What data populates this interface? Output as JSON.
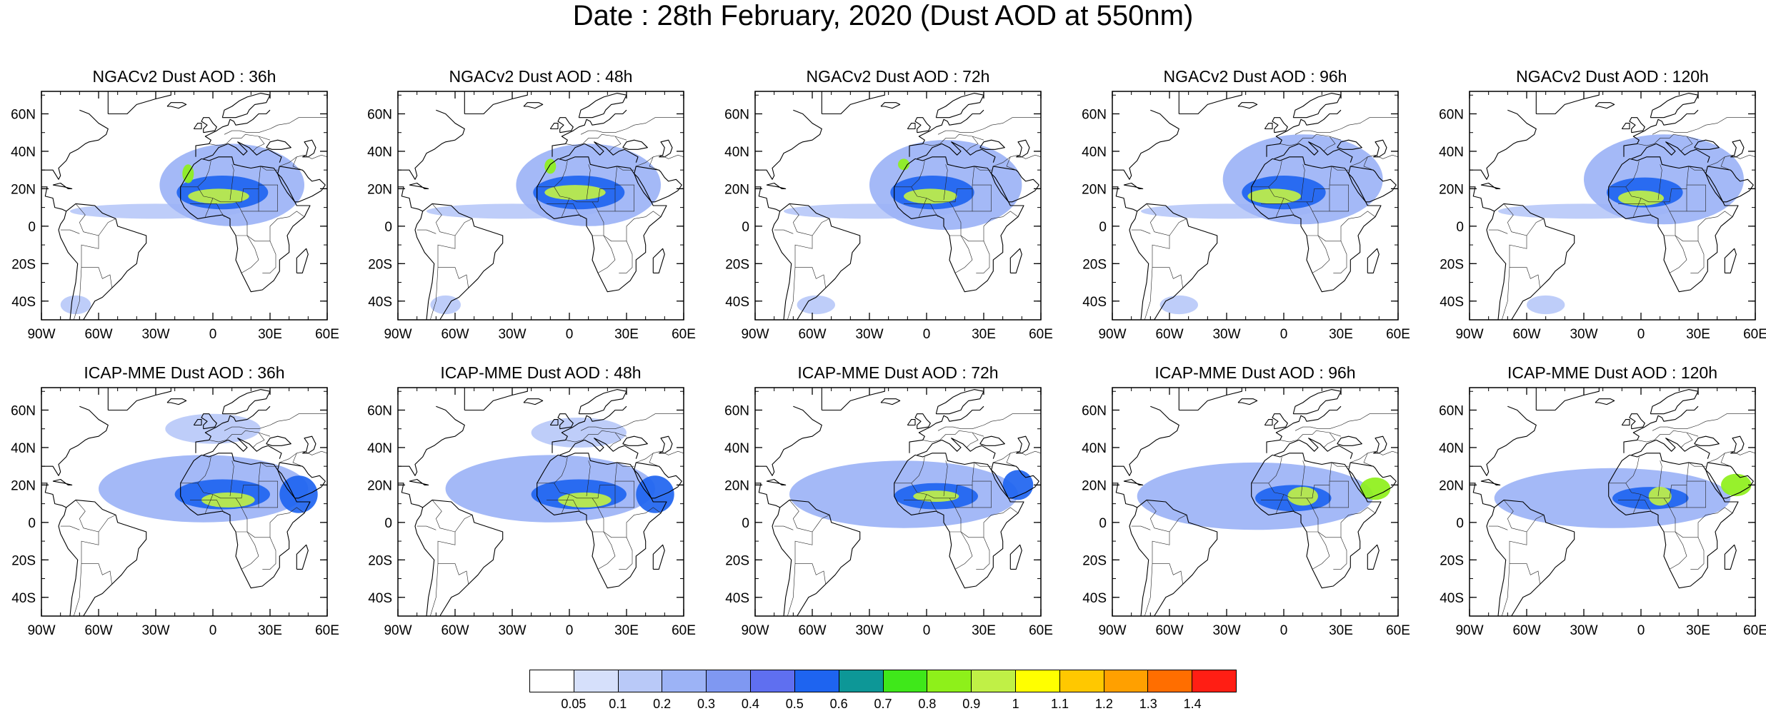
{
  "figure": {
    "title": "Date : 28th February, 2020 (Dust AOD at 550nm)"
  },
  "panels": [
    {
      "title": "NGACv2 Dust AOD : 36h"
    },
    {
      "title": "NGACv2 Dust AOD : 48h"
    },
    {
      "title": "NGACv2 Dust AOD : 72h"
    },
    {
      "title": "NGACv2 Dust AOD : 96h"
    },
    {
      "title": "NGACv2 Dust AOD : 120h"
    },
    {
      "title": "ICAP-MME Dust AOD : 36h"
    },
    {
      "title": "ICAP-MME Dust AOD : 48h"
    },
    {
      "title": "ICAP-MME Dust AOD : 72h"
    },
    {
      "title": "ICAP-MME Dust AOD : 96h"
    },
    {
      "title": "ICAP-MME Dust AOD : 120h"
    }
  ],
  "map_extent": {
    "lon_min": -90,
    "lon_max": 60,
    "lat_min": -50,
    "lat_max": 72
  },
  "axes": {
    "lon_ticks": [
      {
        "value": -90,
        "label": "90W"
      },
      {
        "value": -60,
        "label": "60W"
      },
      {
        "value": -30,
        "label": "30W"
      },
      {
        "value": 0,
        "label": "0"
      },
      {
        "value": 30,
        "label": "30E"
      },
      {
        "value": 60,
        "label": "60E"
      }
    ],
    "lat_ticks": [
      {
        "value": 60,
        "label": "60N"
      },
      {
        "value": 40,
        "label": "40N"
      },
      {
        "value": 20,
        "label": "20N"
      },
      {
        "value": 0,
        "label": "0"
      },
      {
        "value": -20,
        "label": "20S"
      },
      {
        "value": -40,
        "label": "40S"
      }
    ]
  },
  "colorbar": {
    "colors": [
      "#ffffff",
      "#d6e0fb",
      "#b9c9f8",
      "#9cb3f6",
      "#7f98f2",
      "#5f6ff0",
      "#1e64f0",
      "#0d9797",
      "#3fe81a",
      "#8ef01a",
      "#c0f046",
      "#ffff00",
      "#ffc800",
      "#ffa000",
      "#ff6e00",
      "#ff1e14"
    ],
    "labels": [
      "0.05",
      "0.1",
      "0.2",
      "0.3",
      "0.4",
      "0.5",
      "0.6",
      "0.7",
      "0.8",
      "0.9",
      "1",
      "1.1",
      "1.2",
      "1.3",
      "1.4"
    ]
  },
  "plumes": [
    {
      "blobs": [
        {
          "lon": 10,
          "lat": 22,
          "rx": 38,
          "ry": 22,
          "aod": 0.2
        },
        {
          "lon": 5,
          "lat": 18,
          "rx": 24,
          "ry": 9,
          "aod": 0.5
        },
        {
          "lon": 3,
          "lat": 16,
          "rx": 16,
          "ry": 4,
          "aod": 0.9
        },
        {
          "lon": -13,
          "lat": 28,
          "rx": 3,
          "ry": 5,
          "aod": 0.8
        },
        {
          "lon": -30,
          "lat": 8,
          "rx": 45,
          "ry": 4,
          "aod": 0.1
        },
        {
          "lon": -72,
          "lat": -42,
          "rx": 8,
          "ry": 5,
          "aod": 0.1
        }
      ]
    },
    {
      "blobs": [
        {
          "lon": 10,
          "lat": 22,
          "rx": 38,
          "ry": 22,
          "aod": 0.2
        },
        {
          "lon": 5,
          "lat": 18,
          "rx": 24,
          "ry": 9,
          "aod": 0.5
        },
        {
          "lon": 3,
          "lat": 18,
          "rx": 16,
          "ry": 4,
          "aod": 0.9
        },
        {
          "lon": -10,
          "lat": 32,
          "rx": 3,
          "ry": 4,
          "aod": 0.8
        },
        {
          "lon": -30,
          "lat": 8,
          "rx": 45,
          "ry": 4,
          "aod": 0.1
        },
        {
          "lon": -65,
          "lat": -42,
          "rx": 8,
          "ry": 5,
          "aod": 0.1
        }
      ]
    },
    {
      "blobs": [
        {
          "lon": 10,
          "lat": 22,
          "rx": 40,
          "ry": 24,
          "aod": 0.2
        },
        {
          "lon": 3,
          "lat": 18,
          "rx": 22,
          "ry": 9,
          "aod": 0.5
        },
        {
          "lon": 2,
          "lat": 16,
          "rx": 14,
          "ry": 4,
          "aod": 0.9
        },
        {
          "lon": -12,
          "lat": 33,
          "rx": 3,
          "ry": 3,
          "aod": 0.8
        },
        {
          "lon": -30,
          "lat": 8,
          "rx": 45,
          "ry": 4,
          "aod": 0.1
        },
        {
          "lon": -58,
          "lat": -42,
          "rx": 10,
          "ry": 5,
          "aod": 0.1
        }
      ]
    },
    {
      "blobs": [
        {
          "lon": 10,
          "lat": 25,
          "rx": 42,
          "ry": 24,
          "aod": 0.2
        },
        {
          "lon": 0,
          "lat": 18,
          "rx": 22,
          "ry": 9,
          "aod": 0.5
        },
        {
          "lon": -5,
          "lat": 16,
          "rx": 14,
          "ry": 4,
          "aod": 0.9
        },
        {
          "lon": -30,
          "lat": 8,
          "rx": 45,
          "ry": 4,
          "aod": 0.1
        },
        {
          "lon": -55,
          "lat": -42,
          "rx": 10,
          "ry": 5,
          "aod": 0.1
        }
      ]
    },
    {
      "blobs": [
        {
          "lon": 12,
          "lat": 25,
          "rx": 42,
          "ry": 24,
          "aod": 0.2
        },
        {
          "lon": 2,
          "lat": 18,
          "rx": 20,
          "ry": 8,
          "aod": 0.5
        },
        {
          "lon": 0,
          "lat": 15,
          "rx": 12,
          "ry": 4,
          "aod": 0.9
        },
        {
          "lon": -30,
          "lat": 8,
          "rx": 45,
          "ry": 4,
          "aod": 0.1
        },
        {
          "lon": -50,
          "lat": -42,
          "rx": 10,
          "ry": 5,
          "aod": 0.1
        }
      ]
    },
    {
      "blobs": [
        {
          "lon": -5,
          "lat": 18,
          "rx": 55,
          "ry": 18,
          "aod": 0.2
        },
        {
          "lon": 5,
          "lat": 15,
          "rx": 25,
          "ry": 8,
          "aod": 0.5
        },
        {
          "lon": 8,
          "lat": 12,
          "rx": 14,
          "ry": 4,
          "aod": 0.9
        },
        {
          "lon": 45,
          "lat": 15,
          "rx": 10,
          "ry": 10,
          "aod": 0.5
        },
        {
          "lon": 0,
          "lat": 50,
          "rx": 25,
          "ry": 8,
          "aod": 0.1
        }
      ]
    },
    {
      "blobs": [
        {
          "lon": -10,
          "lat": 18,
          "rx": 55,
          "ry": 18,
          "aod": 0.2
        },
        {
          "lon": 5,
          "lat": 15,
          "rx": 25,
          "ry": 8,
          "aod": 0.5
        },
        {
          "lon": 8,
          "lat": 12,
          "rx": 14,
          "ry": 4,
          "aod": 0.9
        },
        {
          "lon": 45,
          "lat": 15,
          "rx": 10,
          "ry": 10,
          "aod": 0.5
        },
        {
          "lon": 5,
          "lat": 48,
          "rx": 25,
          "ry": 8,
          "aod": 0.1
        }
      ]
    },
    {
      "blobs": [
        {
          "lon": -12,
          "lat": 15,
          "rx": 60,
          "ry": 18,
          "aod": 0.2
        },
        {
          "lon": 5,
          "lat": 14,
          "rx": 22,
          "ry": 7,
          "aod": 0.5
        },
        {
          "lon": 5,
          "lat": 14,
          "rx": 12,
          "ry": 3,
          "aod": 0.9
        },
        {
          "lon": 48,
          "lat": 20,
          "rx": 8,
          "ry": 8,
          "aod": 0.5
        }
      ]
    },
    {
      "blobs": [
        {
          "lon": -15,
          "lat": 14,
          "rx": 62,
          "ry": 18,
          "aod": 0.2
        },
        {
          "lon": 5,
          "lat": 13,
          "rx": 20,
          "ry": 7,
          "aod": 0.5
        },
        {
          "lon": 10,
          "lat": 14,
          "rx": 8,
          "ry": 5,
          "aod": 0.9
        },
        {
          "lon": 48,
          "lat": 18,
          "rx": 8,
          "ry": 6,
          "aod": 0.8
        }
      ]
    },
    {
      "blobs": [
        {
          "lon": -15,
          "lat": 13,
          "rx": 62,
          "ry": 16,
          "aod": 0.2
        },
        {
          "lon": 5,
          "lat": 13,
          "rx": 20,
          "ry": 6,
          "aod": 0.5
        },
        {
          "lon": 10,
          "lat": 14,
          "rx": 6,
          "ry": 5,
          "aod": 0.9
        },
        {
          "lon": 50,
          "lat": 20,
          "rx": 8,
          "ry": 6,
          "aod": 0.8
        }
      ]
    }
  ]
}
